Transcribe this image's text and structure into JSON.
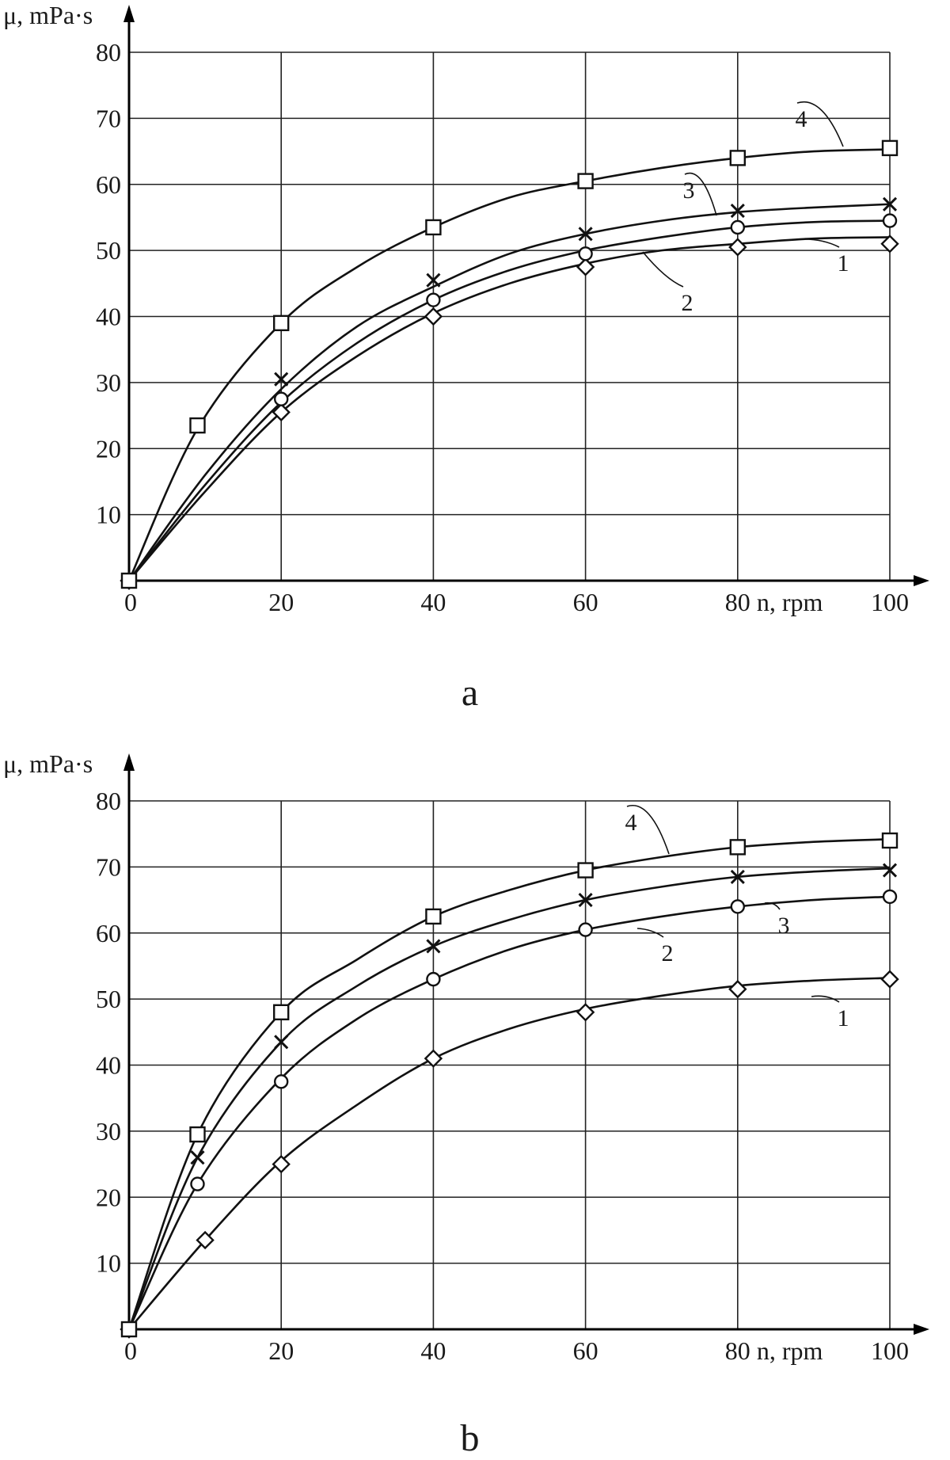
{
  "chart_data": [
    {
      "type": "line",
      "panel": "a",
      "ylabel": "μ, mPa·s",
      "xlabel": "n, rpm",
      "xlim": [
        0,
        100
      ],
      "ylim": [
        0,
        80
      ],
      "x_ticks": [
        "0",
        "20",
        "40",
        "60",
        "80",
        "100"
      ],
      "y_ticks": [
        "10",
        "20",
        "30",
        "40",
        "50",
        "60",
        "70",
        "80"
      ],
      "grid": true,
      "series": [
        {
          "name": "1",
          "marker": "diamond",
          "points": [
            [
              0,
              0
            ],
            [
              20,
              25.5
            ],
            [
              40,
              40
            ],
            [
              60,
              47.5
            ],
            [
              80,
              50.5
            ],
            [
              100,
              51
            ]
          ],
          "curve": [
            [
              0,
              0
            ],
            [
              10,
              13.5
            ],
            [
              20,
              25.5
            ],
            [
              30,
              34
            ],
            [
              40,
              40.5
            ],
            [
              50,
              45
            ],
            [
              60,
              48
            ],
            [
              70,
              50
            ],
            [
              80,
              51
            ],
            [
              90,
              51.8
            ],
            [
              100,
              52
            ]
          ]
        },
        {
          "name": "2",
          "marker": "circle",
          "points": [
            [
              0,
              0
            ],
            [
              20,
              27.5
            ],
            [
              40,
              42.5
            ],
            [
              60,
              49.5
            ],
            [
              80,
              53.5
            ],
            [
              100,
              54.5
            ]
          ],
          "curve": [
            [
              0,
              0
            ],
            [
              10,
              14.5
            ],
            [
              20,
              27
            ],
            [
              30,
              36
            ],
            [
              40,
              42.5
            ],
            [
              50,
              47
            ],
            [
              60,
              50
            ],
            [
              70,
              52
            ],
            [
              80,
              53.5
            ],
            [
              90,
              54.3
            ],
            [
              100,
              54.5
            ]
          ]
        },
        {
          "name": "3",
          "marker": "x",
          "points": [
            [
              0,
              0
            ],
            [
              20,
              30.5
            ],
            [
              40,
              45.5
            ],
            [
              60,
              52.5
            ],
            [
              80,
              56
            ],
            [
              100,
              57
            ]
          ],
          "curve": [
            [
              0,
              0
            ],
            [
              10,
              16
            ],
            [
              20,
              29
            ],
            [
              30,
              38.5
            ],
            [
              40,
              44.5
            ],
            [
              50,
              49.5
            ],
            [
              60,
              52.5
            ],
            [
              70,
              54.5
            ],
            [
              80,
              55.8
            ],
            [
              90,
              56.5
            ],
            [
              100,
              57
            ]
          ]
        },
        {
          "name": "4",
          "marker": "square",
          "points": [
            [
              0,
              0
            ],
            [
              9,
              23.5
            ],
            [
              20,
              39
            ],
            [
              40,
              53.5
            ],
            [
              60,
              60.5
            ],
            [
              80,
              64
            ],
            [
              100,
              65.5
            ]
          ],
          "curve": [
            [
              0,
              0
            ],
            [
              9,
              23
            ],
            [
              20,
              39
            ],
            [
              30,
              47.5
            ],
            [
              40,
              53.5
            ],
            [
              50,
              58
            ],
            [
              60,
              60.5
            ],
            [
              70,
              62.5
            ],
            [
              80,
              64
            ],
            [
              90,
              65
            ],
            [
              100,
              65.3
            ]
          ]
        }
      ]
    },
    {
      "type": "line",
      "panel": "b",
      "ylabel": "μ, mPa·s",
      "xlabel": "n, rpm",
      "xlim": [
        0,
        100
      ],
      "ylim": [
        0,
        80
      ],
      "x_ticks": [
        "0",
        "20",
        "40",
        "60",
        "80",
        "100"
      ],
      "y_ticks": [
        "10",
        "20",
        "30",
        "40",
        "50",
        "60",
        "70",
        "80"
      ],
      "grid": true,
      "series": [
        {
          "name": "1",
          "marker": "diamond",
          "points": [
            [
              0,
              0
            ],
            [
              10,
              13.5
            ],
            [
              20,
              25
            ],
            [
              40,
              41
            ],
            [
              60,
              48
            ],
            [
              80,
              51.5
            ],
            [
              100,
              53
            ]
          ],
          "curve": [
            [
              0,
              0
            ],
            [
              10,
              13.5
            ],
            [
              20,
              25.5
            ],
            [
              30,
              34
            ],
            [
              40,
              41
            ],
            [
              50,
              45.5
            ],
            [
              60,
              48.5
            ],
            [
              70,
              50.5
            ],
            [
              80,
              52
            ],
            [
              90,
              52.8
            ],
            [
              100,
              53.2
            ]
          ]
        },
        {
          "name": "2",
          "marker": "circle",
          "points": [
            [
              0,
              0
            ],
            [
              9,
              22
            ],
            [
              20,
              37.5
            ],
            [
              40,
              53
            ],
            [
              60,
              60.5
            ],
            [
              80,
              64
            ],
            [
              100,
              65.5
            ]
          ],
          "curve": [
            [
              0,
              0
            ],
            [
              9,
              22
            ],
            [
              20,
              38
            ],
            [
              30,
              47
            ],
            [
              40,
              53
            ],
            [
              50,
              57.5
            ],
            [
              60,
              60.5
            ],
            [
              70,
              62.5
            ],
            [
              80,
              64
            ],
            [
              90,
              65
            ],
            [
              100,
              65.5
            ]
          ]
        },
        {
          "name": "3",
          "marker": "x",
          "points": [
            [
              0,
              0
            ],
            [
              9,
              26
            ],
            [
              20,
              43.5
            ],
            [
              40,
              58
            ],
            [
              60,
              65
            ],
            [
              80,
              68.5
            ],
            [
              100,
              69.5
            ]
          ],
          "curve": [
            [
              0,
              0
            ],
            [
              9,
              26
            ],
            [
              20,
              43.5
            ],
            [
              30,
              52
            ],
            [
              40,
              58
            ],
            [
              50,
              62
            ],
            [
              60,
              65
            ],
            [
              70,
              67
            ],
            [
              80,
              68.5
            ],
            [
              90,
              69.3
            ],
            [
              100,
              69.8
            ]
          ]
        },
        {
          "name": "4",
          "marker": "square",
          "points": [
            [
              0,
              0
            ],
            [
              9,
              29.5
            ],
            [
              20,
              48
            ],
            [
              40,
              62.5
            ],
            [
              60,
              69.5
            ],
            [
              80,
              73
            ],
            [
              100,
              74
            ]
          ],
          "curve": [
            [
              0,
              0
            ],
            [
              9,
              29.5
            ],
            [
              20,
              48
            ],
            [
              30,
              56
            ],
            [
              40,
              62.5
            ],
            [
              50,
              66.5
            ],
            [
              60,
              69.5
            ],
            [
              70,
              71.5
            ],
            [
              80,
              73
            ],
            [
              90,
              73.8
            ],
            [
              100,
              74.2
            ]
          ]
        }
      ]
    }
  ]
}
